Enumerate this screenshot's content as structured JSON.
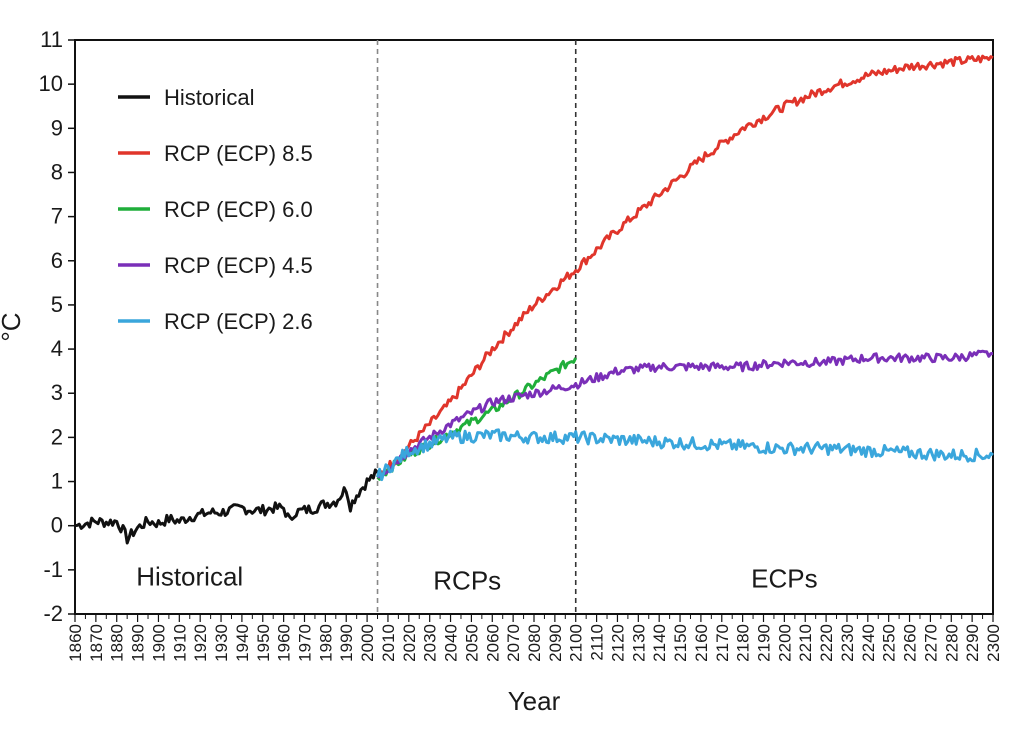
{
  "chart_data": {
    "type": "line",
    "title": "",
    "xlabel": "Year",
    "ylabel": "°C",
    "xlim": [
      1860,
      2300
    ],
    "ylim": [
      -2,
      11
    ],
    "yticks": [
      -2,
      -1,
      0,
      1,
      2,
      3,
      4,
      5,
      6,
      7,
      8,
      9,
      10,
      11
    ],
    "xticks": [
      1860,
      1870,
      1880,
      1890,
      1900,
      1910,
      1920,
      1930,
      1940,
      1950,
      1960,
      1970,
      1980,
      1990,
      2000,
      2010,
      2020,
      2030,
      2040,
      2050,
      2060,
      2070,
      2080,
      2090,
      2100,
      2110,
      2120,
      2130,
      2140,
      2150,
      2160,
      2170,
      2180,
      2190,
      2200,
      2210,
      2220,
      2230,
      2240,
      2250,
      2260,
      2270,
      2280,
      2290,
      2300
    ],
    "grid": false,
    "legend_position": "top-left",
    "dividers": [
      2005,
      2100
    ],
    "regions": [
      {
        "label": "Historical",
        "x": 1915,
        "y": -1.35
      },
      {
        "label": "RCPs",
        "x": 2048,
        "y": -1.45
      },
      {
        "label": "ECPs",
        "x": 2200,
        "y": -1.4
      }
    ],
    "series": [
      {
        "name": "Historical",
        "color": "#111111",
        "x": [
          1860,
          1865,
          1870,
          1875,
          1880,
          1883,
          1885,
          1890,
          1895,
          1900,
          1905,
          1910,
          1915,
          1920,
          1925,
          1930,
          1935,
          1940,
          1945,
          1950,
          1955,
          1960,
          1963,
          1965,
          1970,
          1975,
          1980,
          1985,
          1990,
          1992,
          1995,
          2000,
          2005
        ],
        "y": [
          0.0,
          0.05,
          0.1,
          0.08,
          0.1,
          -0.1,
          -0.3,
          -0.05,
          0.1,
          0.05,
          0.15,
          0.1,
          0.2,
          0.25,
          0.3,
          0.3,
          0.35,
          0.4,
          0.35,
          0.35,
          0.4,
          0.4,
          0.1,
          0.3,
          0.35,
          0.4,
          0.5,
          0.55,
          0.85,
          0.45,
          0.7,
          1.0,
          1.2
        ]
      },
      {
        "name": "RCP (ECP) 8.5",
        "color": "#e0352b",
        "x": [
          2005,
          2020,
          2040,
          2060,
          2080,
          2100,
          2120,
          2140,
          2160,
          2180,
          2200,
          2220,
          2240,
          2260,
          2280,
          2300
        ],
        "y": [
          1.1,
          1.8,
          2.8,
          4.0,
          5.0,
          5.8,
          6.7,
          7.5,
          8.3,
          9.0,
          9.5,
          9.9,
          10.2,
          10.4,
          10.5,
          10.6
        ]
      },
      {
        "name": "RCP (ECP) 6.0",
        "color": "#1fae3a",
        "x": [
          2005,
          2020,
          2040,
          2060,
          2080,
          2090,
          2100
        ],
        "y": [
          1.1,
          1.6,
          2.1,
          2.6,
          3.2,
          3.5,
          3.8
        ]
      },
      {
        "name": "RCP (ECP) 4.5",
        "color": "#7a2fb8",
        "x": [
          2005,
          2020,
          2040,
          2060,
          2080,
          2100,
          2120,
          2140,
          2160,
          2180,
          2200,
          2220,
          2240,
          2260,
          2280,
          2300
        ],
        "y": [
          1.1,
          1.7,
          2.3,
          2.8,
          3.0,
          3.2,
          3.5,
          3.6,
          3.6,
          3.6,
          3.7,
          3.7,
          3.8,
          3.8,
          3.8,
          3.9
        ]
      },
      {
        "name": "RCP (ECP) 2.6",
        "color": "#3aa6dc",
        "x": [
          2005,
          2020,
          2040,
          2060,
          2080,
          2100,
          2120,
          2140,
          2160,
          2180,
          2200,
          2220,
          2240,
          2260,
          2280,
          2300
        ],
        "y": [
          1.1,
          1.7,
          2.0,
          2.05,
          2.0,
          2.0,
          1.95,
          1.9,
          1.85,
          1.8,
          1.75,
          1.75,
          1.7,
          1.65,
          1.6,
          1.6
        ]
      }
    ]
  }
}
